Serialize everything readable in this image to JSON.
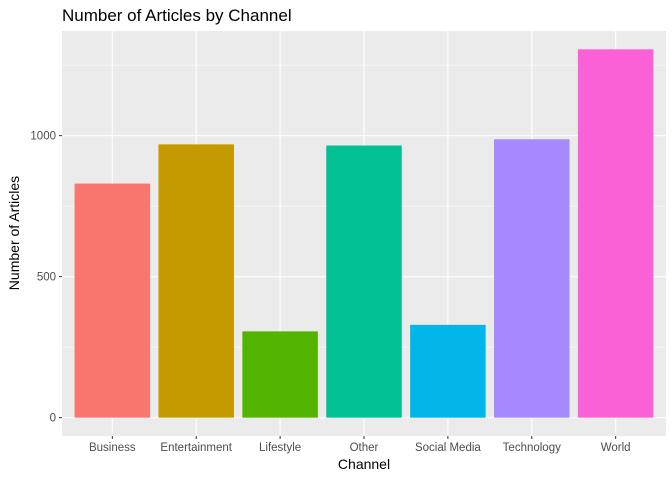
{
  "chart_data": {
    "type": "bar",
    "title": "Number of Articles by Channel",
    "xlabel": "Channel",
    "ylabel": "Number of Articles",
    "categories": [
      "Business",
      "Entertainment",
      "Lifestyle",
      "Other",
      "Social Media",
      "Technology",
      "World"
    ],
    "values": [
      830,
      969,
      306,
      965,
      329,
      987,
      1306
    ],
    "colors": [
      "#F8766D",
      "#C49A00",
      "#53B400",
      "#00C094",
      "#00B6EB",
      "#A58AFF",
      "#FB61D7"
    ],
    "ylim": [
      -65,
      1371
    ],
    "yticks": [
      0,
      500,
      1000
    ],
    "ytick_labels": [
      "0",
      "500",
      "1000"
    ],
    "grid": true,
    "legend": "none",
    "panel_background": "#EBEBEB",
    "grid_color": "#FFFFFF"
  }
}
